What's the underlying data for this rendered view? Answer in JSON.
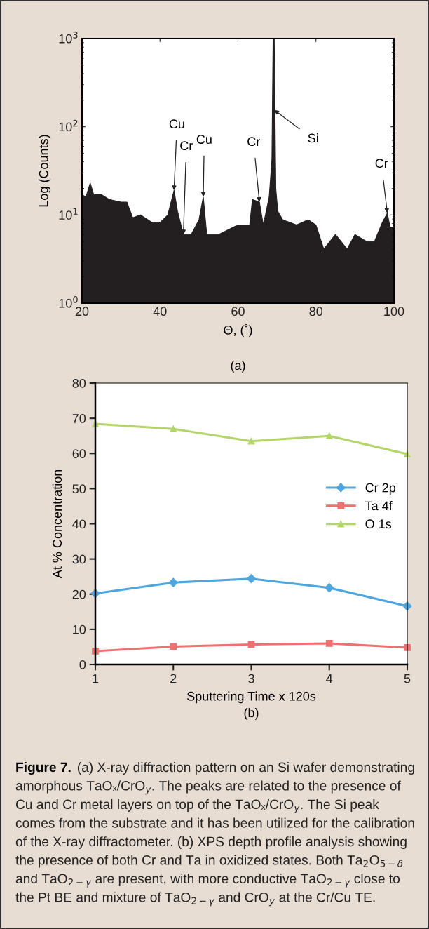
{
  "chart_data": [
    {
      "type": "area",
      "xlabel": "Θ, (˚)",
      "ylabel": "Log (Counts)",
      "log": "y",
      "color": "#231f20",
      "x": [
        20,
        21,
        22.1,
        23,
        25,
        27,
        30,
        31.5,
        33,
        35,
        38,
        40,
        42,
        43.6,
        44.5,
        46,
        48,
        50,
        51.1,
        52,
        55,
        60,
        63,
        63.7,
        65.5,
        66.5,
        68,
        68.7,
        69,
        69.3,
        69.7,
        70.2,
        71.5,
        75,
        78,
        80,
        82,
        85,
        88,
        90,
        93,
        95,
        97,
        98.3,
        99,
        100
      ],
      "values": [
        17,
        16,
        23,
        17,
        17,
        15,
        14,
        14,
        9.3,
        10,
        8.2,
        8.2,
        10,
        19,
        11,
        6,
        6,
        8.8,
        16,
        6,
        6,
        7.7,
        7.7,
        15,
        14,
        7.7,
        16,
        43,
        1000,
        1000,
        20,
        11,
        8.8,
        7.7,
        8.8,
        7.7,
        4.1,
        6,
        4.1,
        6,
        5,
        5,
        8.2,
        10.5,
        7.3,
        7.3
      ],
      "xlim": [
        20,
        100
      ],
      "xticks": [
        20,
        40,
        60,
        80,
        100
      ],
      "ylim": [
        1,
        1000
      ],
      "yticks": [
        {
          "value": 1,
          "label": "10$^{0}$"
        },
        {
          "value": 10,
          "label": "10$^{1}$"
        },
        {
          "value": 100,
          "label": "10$^{2}$"
        },
        {
          "value": 1000,
          "label": "10$^{3}$"
        }
      ],
      "annotations": [
        {
          "text": "Cu",
          "x": 43.6,
          "y": 19
        },
        {
          "text": "Cr",
          "x": 46,
          "y": 6
        },
        {
          "text": "Cu",
          "x": 51.1,
          "y": 16
        },
        {
          "text": "Cr",
          "x": 65.5,
          "y": 14
        },
        {
          "text": "Si",
          "x": 69.3,
          "y": 155
        },
        {
          "text": "Cr",
          "x": 98.3,
          "y": 10.5
        },
        "(a)"
      ]
    },
    {
      "type": "line",
      "xlabel": "Sputtering Time x 120s",
      "ylabel": "At % Concentration",
      "x": [
        1,
        2,
        3,
        4,
        5
      ],
      "xlim": [
        1,
        5
      ],
      "xticks": [
        1,
        2,
        3,
        4,
        5
      ],
      "ylim": [
        0,
        80
      ],
      "yticks": [
        0,
        10,
        20,
        30,
        40,
        50,
        60,
        70,
        80
      ],
      "legend": "right",
      "series": [
        {
          "name": "Cr 2p",
          "color": "#4da6e0",
          "marker": "diamond",
          "values": [
            20.2,
            23.3,
            24.4,
            21.8,
            16.6
          ]
        },
        {
          "name": "Ta 4f",
          "color": "#f07070",
          "marker": "square",
          "values": [
            3.8,
            5.1,
            5.7,
            6.0,
            4.8
          ]
        },
        {
          "name": "O 1s",
          "color": "#b5d56a",
          "marker": "triangle",
          "values": [
            68.4,
            67.0,
            63.5,
            65.0,
            59.8
          ]
        }
      ],
      "annotations": [
        "(b)",
        "Figure 7.",
        "(a) X-ray diffraction pattern on an Si wafer demonstrating amorphous TaOₓ/CrO$_{y}$. The peaks are related to the presence of Cu and Cr metal layers on top of the TaOₓ/CrO$_{y}$. The Si peak comes from the substrate and it has been utilized for the calibration of the X-ray diffractometer. (b) XPS depth profile analysis showing the presence of both Cr and Ta in oxidized states. Both Ta$_{2}$O$_{5−δ}$ and TaO$_{2−γ}$ are present, with more conductive TaO$_{2−γ}$ close to the Pt BE and mixture of TaO$_{2−γ}$ and CrO$_{y}$ at the Cr/Cu TE."
      ]
    }
  ]
}
